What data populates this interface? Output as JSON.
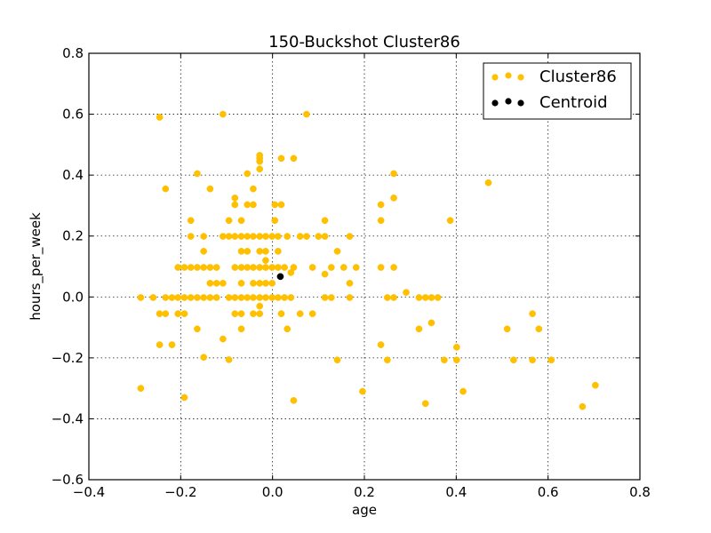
{
  "chart_data": {
    "type": "scatter",
    "title": "150-Buckshot Cluster86",
    "xlabel": "age",
    "ylabel": "hours_per_week",
    "xlim": [
      -0.4,
      0.8
    ],
    "ylim": [
      -0.6,
      0.8
    ],
    "xticks": [
      -0.4,
      -0.2,
      0.0,
      0.2,
      0.4,
      0.6,
      0.8
    ],
    "yticks": [
      -0.6,
      -0.4,
      -0.2,
      0.0,
      0.2,
      0.4,
      0.6,
      0.8
    ],
    "xtick_labels": [
      "−0.4",
      "−0.2",
      "0.0",
      "0.2",
      "0.4",
      "0.6",
      "0.8"
    ],
    "ytick_labels": [
      "−0.6",
      "−0.4",
      "−0.2",
      "0.0",
      "0.2",
      "0.4",
      "0.6",
      "0.8"
    ],
    "grid": true,
    "legend_position": "top-right",
    "series": [
      {
        "name": "Cluster86",
        "color": "#FFC000",
        "points": [
          [
            -0.287,
            -0.002
          ],
          [
            -0.287,
            -0.3
          ],
          [
            -0.26,
            -0.002
          ],
          [
            -0.246,
            0.59
          ],
          [
            -0.246,
            -0.055
          ],
          [
            -0.246,
            -0.157
          ],
          [
            -0.233,
            0.355
          ],
          [
            -0.233,
            -0.002
          ],
          [
            -0.233,
            -0.055
          ],
          [
            -0.219,
            -0.002
          ],
          [
            -0.219,
            -0.157
          ],
          [
            -0.206,
            0.097
          ],
          [
            -0.206,
            -0.002
          ],
          [
            -0.206,
            -0.055
          ],
          [
            -0.192,
            0.097
          ],
          [
            -0.192,
            -0.002
          ],
          [
            -0.192,
            -0.055
          ],
          [
            -0.192,
            -0.33
          ],
          [
            -0.178,
            0.097
          ],
          [
            -0.178,
            -0.002
          ],
          [
            -0.178,
            0.251
          ],
          [
            -0.178,
            0.199
          ],
          [
            -0.164,
            0.097
          ],
          [
            -0.164,
            -0.002
          ],
          [
            -0.164,
            -0.105
          ],
          [
            -0.164,
            0.405
          ],
          [
            -0.15,
            0.097
          ],
          [
            -0.15,
            -0.002
          ],
          [
            -0.15,
            0.199
          ],
          [
            -0.15,
            -0.198
          ],
          [
            -0.15,
            0.15
          ],
          [
            -0.136,
            0.355
          ],
          [
            -0.136,
            0.097
          ],
          [
            -0.136,
            0.045
          ],
          [
            -0.136,
            -0.002
          ],
          [
            -0.122,
            0.097
          ],
          [
            -0.122,
            0.045
          ],
          [
            -0.122,
            -0.002
          ],
          [
            -0.108,
            0.6
          ],
          [
            -0.108,
            0.199
          ],
          [
            -0.108,
            0.045
          ],
          [
            -0.108,
            -0.138
          ],
          [
            -0.095,
            0.251
          ],
          [
            -0.095,
            0.199
          ],
          [
            -0.095,
            -0.002
          ],
          [
            -0.095,
            -0.206
          ],
          [
            -0.082,
            0.325
          ],
          [
            -0.082,
            0.303
          ],
          [
            -0.082,
            0.199
          ],
          [
            -0.082,
            0.097
          ],
          [
            -0.082,
            -0.002
          ],
          [
            -0.082,
            -0.055
          ],
          [
            -0.068,
            0.251
          ],
          [
            -0.068,
            0.199
          ],
          [
            -0.068,
            0.15
          ],
          [
            -0.068,
            0.097
          ],
          [
            -0.068,
            0.045
          ],
          [
            -0.068,
            -0.002
          ],
          [
            -0.068,
            -0.055
          ],
          [
            -0.068,
            -0.105
          ],
          [
            -0.055,
            0.405
          ],
          [
            -0.055,
            0.303
          ],
          [
            -0.055,
            0.199
          ],
          [
            -0.055,
            0.15
          ],
          [
            -0.055,
            0.097
          ],
          [
            -0.055,
            -0.002
          ],
          [
            -0.042,
            0.355
          ],
          [
            -0.042,
            0.303
          ],
          [
            -0.042,
            0.199
          ],
          [
            -0.042,
            0.097
          ],
          [
            -0.042,
            0.045
          ],
          [
            -0.042,
            -0.002
          ],
          [
            -0.042,
            -0.055
          ],
          [
            -0.028,
            0.465
          ],
          [
            -0.028,
            0.455
          ],
          [
            -0.028,
            0.445
          ],
          [
            -0.028,
            0.42
          ],
          [
            -0.028,
            0.199
          ],
          [
            -0.028,
            0.15
          ],
          [
            -0.028,
            0.097
          ],
          [
            -0.028,
            0.045
          ],
          [
            -0.028,
            -0.002
          ],
          [
            -0.028,
            -0.03
          ],
          [
            -0.028,
            -0.055
          ],
          [
            -0.015,
            0.199
          ],
          [
            -0.015,
            0.15
          ],
          [
            -0.015,
            0.12
          ],
          [
            -0.015,
            0.097
          ],
          [
            -0.015,
            0.045
          ],
          [
            -0.015,
            -0.002
          ],
          [
            -0.001,
            0.199
          ],
          [
            -0.001,
            0.097
          ],
          [
            -0.001,
            0.045
          ],
          [
            -0.001,
            -0.002
          ],
          [
            0.005,
            0.303
          ],
          [
            0.005,
            0.251
          ],
          [
            0.012,
            0.199
          ],
          [
            0.012,
            0.15
          ],
          [
            0.012,
            0.097
          ],
          [
            0.012,
            -0.002
          ],
          [
            0.019,
            0.455
          ],
          [
            0.019,
            0.303
          ],
          [
            0.019,
            -0.055
          ],
          [
            0.026,
            0.097
          ],
          [
            0.026,
            -0.002
          ],
          [
            0.032,
            0.199
          ],
          [
            0.032,
            -0.105
          ],
          [
            0.04,
            0.08
          ],
          [
            0.04,
            -0.002
          ],
          [
            0.046,
            0.455
          ],
          [
            0.046,
            0.097
          ],
          [
            0.046,
            -0.34
          ],
          [
            0.06,
            0.199
          ],
          [
            0.06,
            -0.055
          ],
          [
            0.074,
            0.6
          ],
          [
            0.074,
            0.199
          ],
          [
            0.087,
            0.097
          ],
          [
            0.087,
            -0.055
          ],
          [
            0.1,
            0.199
          ],
          [
            0.114,
            0.251
          ],
          [
            0.114,
            0.199
          ],
          [
            0.114,
            0.075
          ],
          [
            0.114,
            -0.002
          ],
          [
            0.128,
            0.097
          ],
          [
            0.128,
            -0.002
          ],
          [
            0.141,
            0.15
          ],
          [
            0.141,
            -0.207
          ],
          [
            0.155,
            0.097
          ],
          [
            0.168,
            0.199
          ],
          [
            0.168,
            0.045
          ],
          [
            0.168,
            -0.002
          ],
          [
            0.182,
            0.097
          ],
          [
            0.196,
            -0.31
          ],
          [
            0.236,
            0.303
          ],
          [
            0.236,
            0.251
          ],
          [
            0.236,
            0.097
          ],
          [
            0.236,
            -0.157
          ],
          [
            0.25,
            -0.002
          ],
          [
            0.25,
            -0.207
          ],
          [
            0.264,
            0.405
          ],
          [
            0.264,
            0.325
          ],
          [
            0.264,
            0.097
          ],
          [
            0.264,
            -0.002
          ],
          [
            0.291,
            0.015
          ],
          [
            0.319,
            -0.105
          ],
          [
            0.319,
            -0.002
          ],
          [
            0.333,
            -0.35
          ],
          [
            0.333,
            -0.002
          ],
          [
            0.346,
            -0.002
          ],
          [
            0.346,
            -0.085
          ],
          [
            0.36,
            -0.002
          ],
          [
            0.374,
            -0.207
          ],
          [
            0.387,
            0.251
          ],
          [
            0.401,
            -0.165
          ],
          [
            0.401,
            -0.207
          ],
          [
            0.415,
            -0.31
          ],
          [
            0.47,
            0.375
          ],
          [
            0.511,
            -0.105
          ],
          [
            0.525,
            -0.207
          ],
          [
            0.566,
            -0.055
          ],
          [
            0.566,
            -0.207
          ],
          [
            0.58,
            -0.105
          ],
          [
            0.607,
            -0.207
          ],
          [
            0.675,
            -0.36
          ],
          [
            0.703,
            -0.29
          ]
        ]
      },
      {
        "name": "Centroid",
        "color": "#000000",
        "points": [
          [
            0.017,
            0.067
          ]
        ]
      }
    ]
  }
}
